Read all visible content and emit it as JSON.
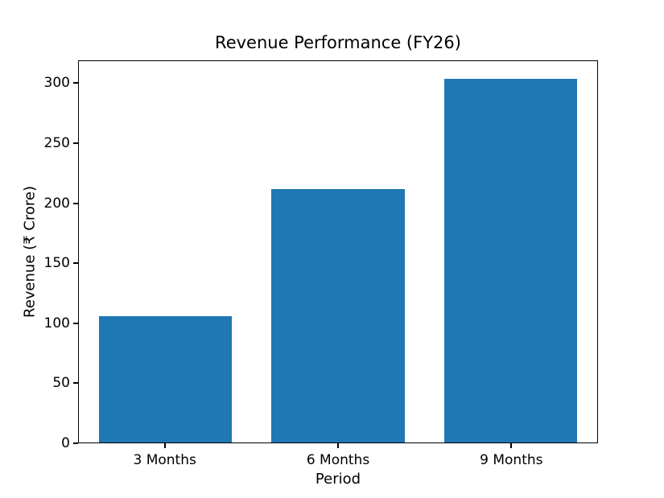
{
  "chart_data": {
    "type": "bar",
    "title": "Revenue Performance (FY26)",
    "xlabel": "Period",
    "ylabel": "Revenue (₹ Crore)",
    "categories": [
      "3 Months",
      "6 Months",
      "9 Months"
    ],
    "values": [
      106,
      212,
      304
    ],
    "yticks": [
      0,
      50,
      100,
      150,
      200,
      250,
      300
    ],
    "ylim": [
      0,
      319
    ],
    "bar_color": "#1f77b4",
    "axis_color": "#000000",
    "background_color": "#ffffff",
    "grid": false,
    "legend": null
  }
}
